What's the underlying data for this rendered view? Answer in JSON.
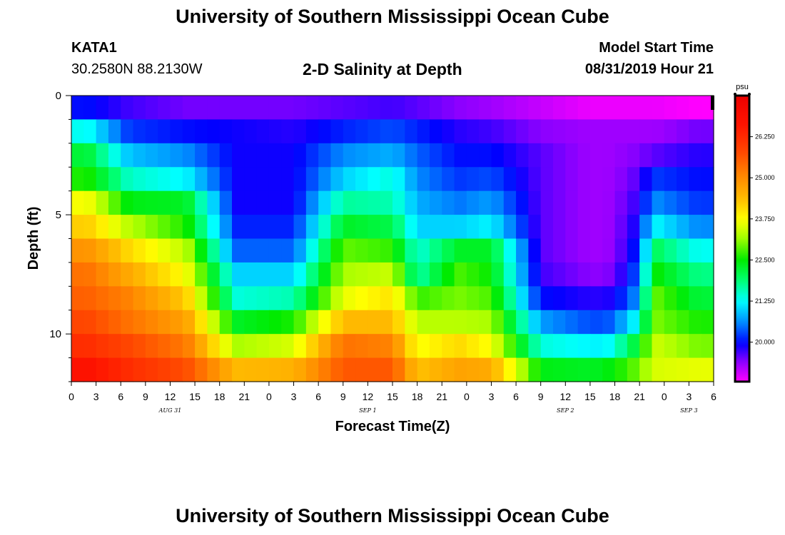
{
  "header": {
    "title": "University of Southern Mississippi Ocean Cube",
    "station": "KATA1",
    "coordinates": "30.2580N 88.2130W",
    "subtitle": "2-D Salinity at Depth",
    "start_label": "Model Start Time",
    "start_time": "08/31/2019 Hour 21"
  },
  "footer": {
    "title": "University of Southern Mississippi Ocean Cube"
  },
  "chart_data": {
    "type": "heatmap",
    "title": "2-D Salinity at Depth",
    "xlabel": "Forecast Time(Z)",
    "ylabel": "Depth (ft)",
    "x_unit": "hours since 08/31/2019 00Z",
    "xlim": [
      0,
      78
    ],
    "ylim": [
      0,
      12
    ],
    "y_inverted": true,
    "x_tick_labels": [
      "0",
      "3",
      "6",
      "9",
      "12",
      "15",
      "18",
      "21",
      "0",
      "3",
      "6",
      "9",
      "12",
      "15",
      "18",
      "21",
      "0",
      "3",
      "6",
      "9",
      "12",
      "15",
      "18",
      "21",
      "0",
      "3",
      "6"
    ],
    "y_ticks": [
      0,
      5,
      10
    ],
    "y_tick_labels": [
      "0",
      "5",
      "10"
    ],
    "date_labels": [
      {
        "text": "AUG 31",
        "hour": 12
      },
      {
        "text": "SEP 1",
        "hour": 36
      },
      {
        "text": "SEP 2",
        "hour": 60
      },
      {
        "text": "SEP 3",
        "hour": 75
      }
    ],
    "colorbar": {
      "unit": "psu",
      "min": 18.8,
      "max": 27.5,
      "ticks": [
        20.0,
        21.25,
        22.5,
        23.75,
        25.0,
        26.25
      ],
      "tick_labels": [
        "20.000",
        "21.250",
        "22.500",
        "23.750",
        "25.000",
        "26.250"
      ]
    },
    "depth_levels": [
      0.5,
      1.5,
      2.5,
      3.5,
      4.5,
      5.5,
      6.5,
      7.5,
      8.5,
      9.5,
      10.5,
      11.5
    ],
    "time_columns": [
      2,
      7,
      14,
      20,
      27,
      33,
      39,
      42,
      47,
      51,
      57,
      63,
      65,
      68,
      71,
      76
    ],
    "salinity": [
      [
        20.0,
        19.7,
        19.5,
        19.5,
        19.5,
        19.6,
        19.7,
        19.6,
        19.4,
        19.3,
        19.1,
        18.9,
        18.9,
        18.9,
        18.9,
        18.8
      ],
      [
        21.3,
        20.2,
        20.0,
        19.9,
        19.8,
        20.1,
        20.3,
        20.1,
        19.8,
        19.7,
        19.4,
        19.3,
        19.3,
        19.3,
        19.3,
        19.5
      ],
      [
        22.2,
        20.9,
        20.6,
        19.9,
        19.9,
        20.6,
        20.8,
        20.4,
        20.0,
        20.0,
        19.6,
        19.3,
        19.3,
        19.4,
        19.6,
        19.8
      ],
      [
        22.6,
        21.5,
        21.2,
        19.9,
        19.9,
        21.0,
        21.4,
        20.6,
        20.2,
        20.3,
        19.6,
        19.3,
        19.3,
        19.5,
        20.2,
        20.0
      ],
      [
        23.7,
        22.4,
        22.3,
        19.9,
        19.9,
        21.7,
        21.6,
        20.8,
        20.5,
        20.7,
        19.6,
        19.3,
        19.3,
        19.6,
        20.6,
        20.2
      ],
      [
        24.2,
        23.3,
        22.6,
        20.1,
        20.1,
        22.3,
        22.1,
        21.0,
        21.0,
        21.2,
        19.6,
        19.3,
        19.3,
        19.7,
        21.2,
        20.6
      ],
      [
        24.9,
        24.1,
        23.3,
        20.4,
        20.4,
        22.9,
        22.7,
        21.4,
        22.3,
        22.3,
        19.6,
        19.3,
        19.3,
        19.8,
        22.0,
        21.3
      ],
      [
        25.3,
        24.6,
        23.7,
        21.0,
        21.0,
        23.2,
        23.4,
        21.6,
        22.8,
        22.5,
        19.7,
        19.4,
        19.4,
        20.0,
        22.5,
        21.8
      ],
      [
        25.5,
        25.1,
        24.2,
        21.4,
        21.6,
        23.6,
        24.0,
        22.7,
        23.0,
        22.8,
        20.0,
        19.8,
        19.8,
        20.3,
        22.9,
        22.2
      ],
      [
        25.8,
        25.3,
        24.7,
        22.3,
        22.6,
        24.4,
        24.4,
        23.3,
        23.3,
        23.2,
        20.7,
        20.3,
        20.3,
        21.0,
        23.0,
        22.6
      ],
      [
        26.2,
        25.8,
        25.2,
        23.2,
        23.5,
        25.3,
        25.1,
        23.7,
        24.1,
        23.7,
        21.4,
        21.2,
        21.2,
        22.0,
        23.4,
        23.0
      ],
      [
        26.7,
        26.2,
        25.7,
        24.4,
        24.5,
        25.6,
        25.6,
        24.3,
        24.7,
        24.6,
        22.4,
        22.3,
        22.4,
        22.8,
        23.5,
        23.6
      ]
    ]
  }
}
